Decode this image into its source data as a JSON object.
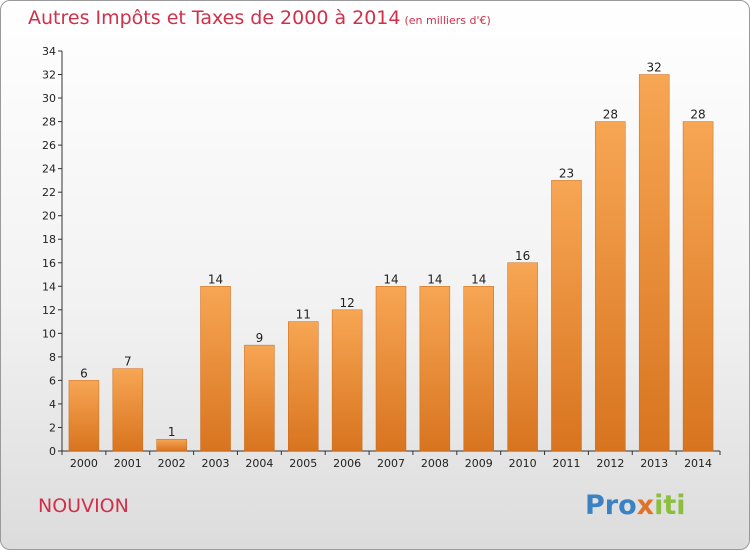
{
  "header": {
    "title": "Autres Impôts et Taxes de 2000 à 2014",
    "unit": "(en milliers d'€)"
  },
  "footer": {
    "commune": "NOUVION",
    "logo_parts": [
      "Pro",
      "x",
      "iti"
    ]
  },
  "colors": {
    "title": "#d0304a",
    "bar_light": "#f7a654",
    "bar_dark": "#d8741f"
  },
  "chart_data": {
    "type": "bar",
    "title": "Autres Impôts et Taxes de 2000 à 2014",
    "categories": [
      "2000",
      "2001",
      "2002",
      "2003",
      "2004",
      "2005",
      "2006",
      "2007",
      "2008",
      "2009",
      "2010",
      "2011",
      "2012",
      "2013",
      "2014"
    ],
    "values": [
      6,
      7,
      1,
      14,
      9,
      11,
      12,
      14,
      14,
      14,
      16,
      23,
      28,
      32,
      28
    ],
    "ylim": [
      0,
      34
    ],
    "ytick_step": 2,
    "grid": false,
    "legend": "none"
  }
}
